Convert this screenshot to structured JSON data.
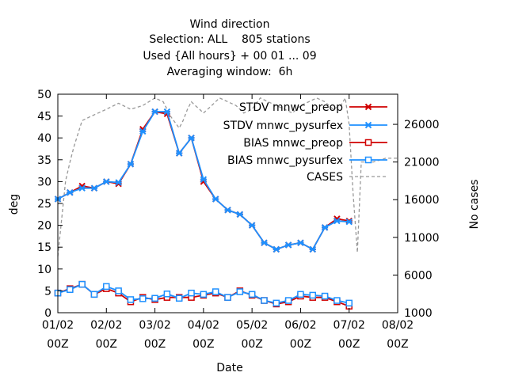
{
  "chart_data": {
    "type": "line",
    "title_lines": [
      "Wind direction",
      "Selection: ALL    805 stations",
      "Used {All hours} + 00 01 ... 09",
      "Averaging window:  6h"
    ],
    "xlabel": "Date",
    "ylabel": "deg",
    "y2label": "No cases",
    "xlim": [
      0,
      7
    ],
    "ylim": [
      0,
      50
    ],
    "y2lim": [
      1000,
      30000
    ],
    "x_tick_labels": [
      {
        "x": 0,
        "top": "01/02",
        "bottom": "00Z"
      },
      {
        "x": 1,
        "top": "02/02",
        "bottom": "00Z"
      },
      {
        "x": 2,
        "top": "03/02",
        "bottom": "00Z"
      },
      {
        "x": 3,
        "top": "04/02",
        "bottom": "00Z"
      },
      {
        "x": 4,
        "top": "05/02",
        "bottom": "00Z"
      },
      {
        "x": 5,
        "top": "06/02",
        "bottom": "00Z"
      },
      {
        "x": 6,
        "top": "07/02",
        "bottom": "00Z"
      },
      {
        "x": 7,
        "top": "08/02",
        "bottom": "00Z"
      }
    ],
    "y_ticks": [
      0,
      5,
      10,
      15,
      20,
      25,
      30,
      35,
      40,
      45,
      50
    ],
    "y2_ticks": [
      1000,
      6000,
      11000,
      16000,
      21000,
      26000
    ],
    "grid": false,
    "legend_position": "top-right",
    "x": [
      0,
      0.25,
      0.5,
      0.75,
      1,
      1.25,
      1.5,
      1.75,
      2,
      2.25,
      2.5,
      2.75,
      3,
      3.25,
      3.5,
      3.75,
      4,
      4.25,
      4.5,
      4.75,
      5,
      5.25,
      5.5,
      5.75,
      6,
      6.25
    ],
    "series": [
      {
        "name": "STDV mnwc_preop",
        "axis": "y",
        "color": "#d00000",
        "marker": "x",
        "values": [
          26,
          27.5,
          29,
          28.5,
          30,
          29.5,
          34,
          42,
          46,
          45.5,
          36.5,
          40,
          30,
          26,
          23.5,
          22.5,
          20,
          16,
          14.5,
          15.5,
          16,
          14.5,
          19.5,
          21.5,
          21,
          null
        ]
      },
      {
        "name": "STDV mnwc_pysurfex",
        "axis": "y",
        "color": "#1e90ff",
        "marker": "x",
        "values": [
          26,
          27.5,
          28.5,
          28.5,
          30,
          29.8,
          34,
          41.5,
          46,
          46,
          36.5,
          40,
          30.5,
          26,
          23.5,
          22.5,
          20,
          16,
          14.5,
          15.5,
          16,
          14.5,
          19.5,
          21,
          20.8,
          null
        ]
      },
      {
        "name": "BIAS mnwc_preop",
        "axis": "y",
        "color": "#d00000",
        "marker": "square",
        "values": [
          4.5,
          5.5,
          6.5,
          4.2,
          5.5,
          4.5,
          2.5,
          3.5,
          3,
          3.5,
          3.5,
          3.5,
          4,
          4.5,
          3.5,
          5,
          4,
          2.8,
          2,
          2.5,
          3.8,
          3.5,
          3.5,
          2.5,
          1.5,
          null
        ]
      },
      {
        "name": "BIAS mnwc_pysurfex",
        "axis": "y",
        "color": "#1e90ff",
        "marker": "square",
        "values": [
          4.5,
          5.3,
          6.5,
          4.2,
          6,
          5,
          3,
          3.2,
          3.3,
          4.3,
          3.3,
          4.5,
          4.2,
          4.8,
          3.5,
          4.8,
          4.2,
          2.8,
          2.2,
          2.8,
          4.2,
          4,
          3.8,
          2.8,
          2.2,
          null
        ]
      },
      {
        "name": "CASES",
        "axis": "y2",
        "color": "#999999",
        "marker": "none",
        "x": [
          0,
          0.08,
          0.16,
          0.25,
          0.33,
          0.5,
          0.66,
          0.83,
          1,
          1.25,
          1.5,
          1.75,
          2,
          2.17,
          2.33,
          2.5,
          2.58,
          2.67,
          2.75,
          2.83,
          2.92,
          3,
          3.17,
          3.33,
          3.5,
          3.67,
          3.83,
          4,
          4.17,
          4.33,
          4.5,
          4.67,
          4.83,
          5,
          5.17,
          5.33,
          5.5,
          5.67,
          5.83,
          5.92,
          6,
          6.08,
          6.17,
          6.25,
          6.5,
          6.75,
          7
        ],
        "values": [
          8500,
          13500,
          18500,
          21000,
          23000,
          26500,
          27000,
          27500,
          28000,
          28800,
          28000,
          28500,
          29500,
          29000,
          27000,
          25500,
          26500,
          28000,
          29000,
          28500,
          28000,
          27500,
          28500,
          29500,
          29000,
          28500,
          27500,
          28000,
          29500,
          29000,
          28500,
          28000,
          27500,
          28500,
          29000,
          29500,
          29000,
          28000,
          28500,
          29500,
          26000,
          17000,
          9000,
          21000,
          21000,
          21500,
          21500
        ]
      }
    ]
  }
}
